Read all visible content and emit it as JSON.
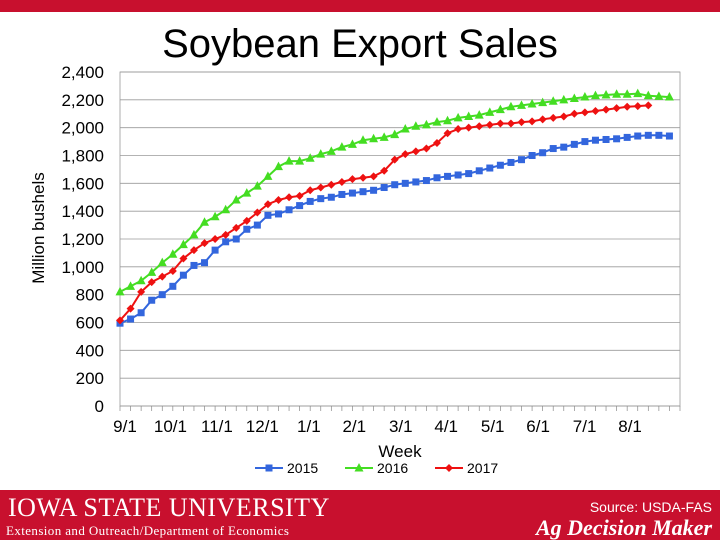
{
  "chart_data": {
    "type": "line",
    "title": "Soybean Export Sales",
    "xlabel": "Week",
    "ylabel": "Million bushels",
    "ylim": [
      0,
      2400
    ],
    "yticks": [
      "0",
      "200",
      "400",
      "600",
      "800",
      "1,000",
      "1,200",
      "1,400",
      "1,600",
      "1,800",
      "2,000",
      "2,200",
      "2,400"
    ],
    "xticks": [
      "9/1",
      "10/1",
      "11/1",
      "12/1",
      "1/1",
      "2/1",
      "3/1",
      "4/1",
      "5/1",
      "6/1",
      "7/1",
      "8/1"
    ],
    "weeks": 53,
    "grid": true,
    "legend_position": "bottom",
    "series": [
      {
        "name": "2015",
        "color": "#3366dd",
        "marker": "square",
        "values": [
          595,
          625,
          670,
          760,
          800,
          860,
          940,
          1010,
          1030,
          1120,
          1180,
          1200,
          1270,
          1300,
          1370,
          1380,
          1410,
          1440,
          1470,
          1490,
          1500,
          1520,
          1530,
          1540,
          1550,
          1570,
          1590,
          1600,
          1610,
          1620,
          1640,
          1650,
          1660,
          1670,
          1690,
          1710,
          1730,
          1750,
          1770,
          1800,
          1820,
          1850,
          1860,
          1880,
          1900,
          1910,
          1915,
          1920,
          1930,
          1940,
          1945,
          1945,
          1940
        ]
      },
      {
        "name": "2016",
        "color": "#44dd22",
        "marker": "triangle",
        "values": [
          820,
          860,
          900,
          960,
          1030,
          1090,
          1160,
          1230,
          1320,
          1360,
          1410,
          1480,
          1530,
          1580,
          1650,
          1720,
          1760,
          1760,
          1780,
          1810,
          1830,
          1860,
          1880,
          1910,
          1920,
          1930,
          1950,
          1990,
          2010,
          2020,
          2040,
          2050,
          2070,
          2080,
          2090,
          2110,
          2130,
          2150,
          2160,
          2170,
          2180,
          2190,
          2200,
          2210,
          2220,
          2230,
          2235,
          2240,
          2240,
          2245,
          2230,
          2225,
          2220
        ]
      },
      {
        "name": "2017",
        "color": "#ee1111",
        "marker": "diamond",
        "values": [
          615,
          700,
          820,
          890,
          930,
          970,
          1060,
          1120,
          1170,
          1200,
          1230,
          1280,
          1330,
          1390,
          1450,
          1480,
          1500,
          1510,
          1550,
          1570,
          1590,
          1610,
          1630,
          1640,
          1650,
          1690,
          1770,
          1810,
          1830,
          1850,
          1890,
          1960,
          1990,
          2000,
          2010,
          2020,
          2030,
          2030,
          2040,
          2045,
          2060,
          2070,
          2080,
          2100,
          2110,
          2120,
          2130,
          2140,
          2150,
          2155,
          2160
        ]
      }
    ]
  },
  "footer": {
    "university": "IOWA STATE UNIVERSITY",
    "department": "Extension and Outreach/Department of Economics",
    "source": "Source: USDA-FAS",
    "brand": "Ag Decision Maker"
  }
}
